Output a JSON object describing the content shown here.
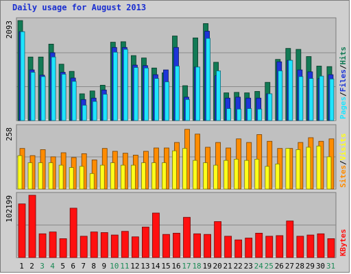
{
  "title": "Daily usage for August 2013",
  "colors": {
    "hits": "#127a55",
    "files": "#1d35d8",
    "pages": "#1fe4ff",
    "visits": "#ffff1a",
    "sites": "#ff8c00",
    "kbytes": "#ff1010",
    "weekend_label": "#1a8a55",
    "weekday_label": "#000000"
  },
  "chart_data": [
    {
      "type": "bar",
      "panel": "hits-files-pages",
      "ymax_label": "2093",
      "ymax": 2093,
      "legend": [
        "Pages",
        "/",
        "Files",
        "/",
        "Hits"
      ],
      "categories": [
        "1",
        "2",
        "3",
        "4",
        "5",
        "6",
        "7",
        "8",
        "9",
        "10",
        "11",
        "12",
        "13",
        "14",
        "15",
        "16",
        "17",
        "18",
        "19",
        "20",
        "21",
        "22",
        "23",
        "24",
        "25",
        "26",
        "27",
        "28",
        "29",
        "30",
        "31"
      ],
      "weekend": [
        3,
        4,
        10,
        11,
        17,
        18,
        24,
        25,
        31
      ],
      "series": [
        {
          "name": "Hits",
          "values": [
            2093,
            1330,
            1330,
            1600,
            1180,
            1030,
            560,
            620,
            740,
            1640,
            1650,
            1360,
            1310,
            1100,
            1000,
            1770,
            730,
            1730,
            2030,
            1220,
            580,
            590,
            580,
            610,
            800,
            1280,
            1510,
            1490,
            1340,
            1140,
            1130
          ]
        },
        {
          "name": "Files",
          "values": [
            1860,
            1060,
            950,
            1420,
            1010,
            890,
            440,
            470,
            640,
            1530,
            1530,
            1160,
            1150,
            960,
            1060,
            1530,
            490,
            1120,
            1870,
            940,
            470,
            490,
            470,
            470,
            560,
            1230,
            1260,
            1060,
            1020,
            880,
            960
          ]
        },
        {
          "name": "Pages",
          "values": [
            1860,
            1010,
            920,
            1330,
            970,
            820,
            320,
            400,
            550,
            1430,
            1490,
            1110,
            1100,
            880,
            810,
            1140,
            440,
            1120,
            1720,
            1040,
            250,
            240,
            250,
            240,
            560,
            1040,
            1260,
            920,
            880,
            930,
            870
          ]
        }
      ]
    },
    {
      "type": "bar",
      "panel": "sites-visits",
      "ymax_label": "258",
      "ymax": 258,
      "legend": [
        "Sites",
        "/",
        "Visits"
      ],
      "categories": [
        "1",
        "2",
        "3",
        "4",
        "5",
        "6",
        "7",
        "8",
        "9",
        "10",
        "11",
        "12",
        "13",
        "14",
        "15",
        "16",
        "17",
        "18",
        "19",
        "20",
        "21",
        "22",
        "23",
        "24",
        "25",
        "26",
        "27",
        "28",
        "29",
        "30",
        "31"
      ],
      "series": [
        {
          "name": "Sites",
          "values": [
            170,
            140,
            165,
            135,
            152,
            132,
            148,
            122,
            170,
            158,
            150,
            142,
            158,
            172,
            172,
            195,
            250,
            230,
            175,
            195,
            172,
            210,
            195,
            228,
            200,
            170,
            170,
            195,
            215,
            200,
            210
          ]
        },
        {
          "name": "Visits",
          "values": [
            140,
            110,
            110,
            110,
            100,
            90,
            95,
            65,
            100,
            110,
            100,
            100,
            110,
            110,
            110,
            160,
            170,
            120,
            110,
            100,
            120,
            125,
            120,
            125,
            95,
            105,
            170,
            165,
            175,
            180,
            135
          ]
        }
      ]
    },
    {
      "type": "bar",
      "panel": "kbytes",
      "ymax_label": "102199",
      "ymax": 102199,
      "legend": [
        "KBytes"
      ],
      "categories": [
        "1",
        "2",
        "3",
        "4",
        "5",
        "6",
        "7",
        "8",
        "9",
        "10",
        "11",
        "12",
        "13",
        "14",
        "15",
        "16",
        "17",
        "18",
        "19",
        "20",
        "21",
        "22",
        "23",
        "24",
        "25",
        "26",
        "27",
        "28",
        "29",
        "30",
        "31"
      ],
      "series": [
        {
          "name": "KBytes",
          "values": [
            88000,
            102199,
            39000,
            42000,
            31000,
            81000,
            35000,
            42000,
            41000,
            37000,
            43000,
            34000,
            50000,
            73000,
            38000,
            40000,
            66000,
            39000,
            38000,
            59000,
            35000,
            29000,
            32000,
            40000,
            35000,
            36000,
            60000,
            35000,
            37000,
            39000,
            31000
          ]
        }
      ]
    }
  ]
}
